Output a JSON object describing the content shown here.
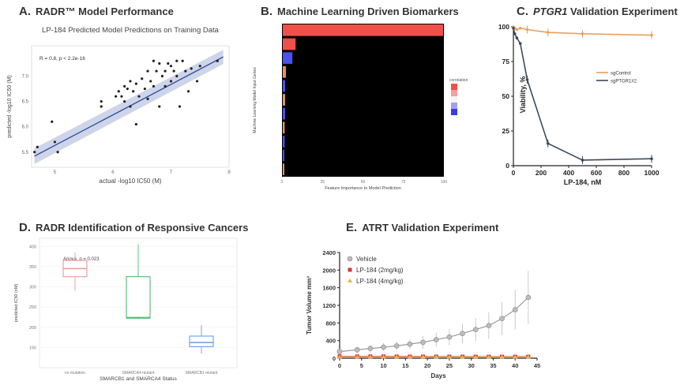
{
  "colors": {
    "scatter_point": "#222222",
    "regression_line": "#3a4fa0",
    "ci_band": "#b9c3e0",
    "bar_red": "#f0504a",
    "bar_blue": "#4a4ff0",
    "bar_orange": "#e89060",
    "bar_black_bg": "#000000",
    "sgcontrol": "#e8a060",
    "sgptgr1": "#3e4a5c",
    "box_red": "#e8a0a0",
    "box_green": "#60c080",
    "box_blue": "#70a8e0",
    "vehicle": "#9a9a9a",
    "lp2": "#d03a3a",
    "lp4": "#e8b050"
  },
  "panels": {
    "a": {
      "letter": "A.",
      "title": "RADR™ Model Performance"
    },
    "b": {
      "letter": "B.",
      "title": "Machine Learning Driven Biomarkers"
    },
    "c": {
      "letter": "C.",
      "title_italic": "PTGR1",
      "title_rest": " Validation Experiment"
    },
    "d": {
      "letter": "D.",
      "title": "RADR Identification of Responsive Cancers"
    },
    "e": {
      "letter": "E.",
      "title": "ATRT Validation Experiment"
    }
  },
  "chart_data": [
    {
      "id": "A",
      "type": "scatter",
      "title": "LP-184 Predicted Model Predictions on Training Data",
      "annotation": "R = 0.8, p < 2.2e-16",
      "xlabel": "actual -log10 IC50 (M)",
      "ylabel": "predicted -log10 IC50 (M)",
      "xlim": [
        4.6,
        8.0
      ],
      "ylim": [
        5.2,
        7.6
      ],
      "points": [
        [
          4.65,
          5.5
        ],
        [
          4.7,
          5.6
        ],
        [
          4.95,
          6.1
        ],
        [
          5.0,
          5.7
        ],
        [
          5.05,
          5.5
        ],
        [
          5.8,
          6.4
        ],
        [
          5.8,
          6.5
        ],
        [
          6.05,
          6.6
        ],
        [
          6.1,
          6.7
        ],
        [
          6.15,
          6.6
        ],
        [
          6.2,
          6.8
        ],
        [
          6.2,
          6.5
        ],
        [
          6.25,
          6.75
        ],
        [
          6.3,
          6.9
        ],
        [
          6.3,
          6.4
        ],
        [
          6.35,
          6.7
        ],
        [
          6.4,
          6.05
        ],
        [
          6.4,
          6.85
        ],
        [
          6.45,
          6.6
        ],
        [
          6.5,
          6.95
        ],
        [
          6.55,
          6.75
        ],
        [
          6.6,
          7.1
        ],
        [
          6.6,
          6.55
        ],
        [
          6.65,
          6.9
        ],
        [
          6.7,
          6.8
        ],
        [
          6.7,
          7.3
        ],
        [
          6.75,
          7.1
        ],
        [
          6.8,
          6.4
        ],
        [
          6.8,
          7.25
        ],
        [
          6.85,
          7.0
        ],
        [
          6.9,
          6.8
        ],
        [
          6.9,
          7.1
        ],
        [
          6.95,
          7.25
        ],
        [
          7.0,
          6.9
        ],
        [
          7.0,
          7.2
        ],
        [
          7.05,
          7.1
        ],
        [
          7.1,
          7.0
        ],
        [
          7.1,
          7.3
        ],
        [
          7.15,
          6.4
        ],
        [
          7.2,
          7.3
        ],
        [
          7.25,
          7.1
        ],
        [
          7.3,
          6.7
        ],
        [
          7.35,
          7.15
        ],
        [
          7.45,
          6.9
        ],
        [
          7.5,
          7.2
        ],
        [
          7.8,
          7.3
        ]
      ],
      "fit": [
        [
          4.65,
          5.42
        ],
        [
          7.9,
          7.38
        ]
      ]
    },
    {
      "id": "B",
      "type": "bar",
      "orientation": "horizontal",
      "title": "Machine Learning Driven Biomarkers",
      "xlabel": "Feature Importance to Model Prediction",
      "ylabel": "Machine Learning Model Input Genes",
      "xlim": [
        0,
        100
      ],
      "values": [
        100,
        8,
        6,
        2,
        1.5,
        1.5,
        1.5,
        1.2,
        1.2,
        1.0,
        1.0
      ],
      "bar_colors": [
        "#f0504a",
        "#f0504a",
        "#4a4ff0",
        "#e89060",
        "#4a4ff0",
        "#e89060",
        "#4a4ff0",
        "#e89060",
        "#4a4ff0",
        "#4a4ff0",
        "#e89060"
      ],
      "legend_title": "correlation"
    },
    {
      "id": "C",
      "type": "line",
      "xlabel": "LP-184, nM",
      "ylabel": "Viability, %",
      "xlim": [
        0,
        1000
      ],
      "ylim": [
        0,
        100
      ],
      "xticks": [
        0,
        200,
        400,
        600,
        800,
        1000
      ],
      "yticks": [
        0,
        25,
        50,
        75,
        100
      ],
      "series": [
        {
          "name": "sgControl",
          "x": [
            0,
            10,
            25,
            50,
            100,
            250,
            500,
            1000
          ],
          "y": [
            100,
            99,
            98,
            99,
            98,
            96,
            95,
            94
          ]
        },
        {
          "name": "sgPTGR1#2",
          "x": [
            0,
            10,
            25,
            50,
            100,
            250,
            500,
            1000
          ],
          "y": [
            99,
            95,
            92,
            88,
            62,
            16,
            4,
            5
          ]
        }
      ]
    },
    {
      "id": "D",
      "type": "box",
      "annotation": "Anova, p = 0.023",
      "xlabel": "SMARCB1 and SMARCA4 Status",
      "ylabel": "predicted IC50 (nM)",
      "categories": [
        "no mutation",
        "SMARCA4 mutant",
        "SMARCB1 mutant"
      ],
      "boxes": [
        {
          "min": 290,
          "q1": 325,
          "median": 345,
          "q3": 365,
          "max": 385
        },
        {
          "min": 220,
          "q1": 222,
          "median": 224,
          "q3": 325,
          "max": 405
        },
        {
          "min": 135,
          "q1": 152,
          "median": 162,
          "q3": 178,
          "max": 205
        }
      ],
      "ylim": [
        100,
        420
      ],
      "yticks": [
        150,
        200,
        250,
        300,
        350,
        400
      ]
    },
    {
      "id": "E",
      "type": "line",
      "xlabel": "Days",
      "ylabel": "Tumor Volume mm³",
      "xlim": [
        0,
        45
      ],
      "ylim": [
        0,
        2400
      ],
      "xticks": [
        0,
        5,
        10,
        15,
        20,
        25,
        30,
        35,
        40,
        45
      ],
      "yticks": [
        0,
        400,
        800,
        1200,
        1600,
        2000,
        2400
      ],
      "series": [
        {
          "name": "Vehicle",
          "x": [
            0,
            4,
            7,
            10,
            13,
            16,
            19,
            22,
            25,
            28,
            31,
            34,
            37,
            40,
            43
          ],
          "y": [
            150,
            190,
            220,
            250,
            280,
            320,
            360,
            420,
            480,
            560,
            650,
            740,
            900,
            1100,
            1380
          ],
          "err": [
            60,
            70,
            80,
            90,
            100,
            120,
            140,
            160,
            180,
            220,
            260,
            300,
            380,
            450,
            600
          ]
        },
        {
          "name": "LP-184 (2mg/kg)",
          "x": [
            0,
            4,
            7,
            10,
            13,
            16,
            19,
            22,
            25,
            28,
            31,
            34,
            37,
            40,
            43
          ],
          "y": [
            40,
            40,
            40,
            40,
            38,
            38,
            38,
            36,
            36,
            36,
            35,
            35,
            35,
            35,
            35
          ]
        },
        {
          "name": "LP-184 (4mg/kg)",
          "x": [
            0,
            4,
            7,
            10,
            13,
            16,
            19,
            22,
            25,
            28,
            31,
            34,
            37,
            40,
            43
          ],
          "y": [
            30,
            30,
            30,
            30,
            28,
            28,
            28,
            27,
            27,
            27,
            26,
            26,
            26,
            26,
            26
          ]
        }
      ]
    }
  ]
}
